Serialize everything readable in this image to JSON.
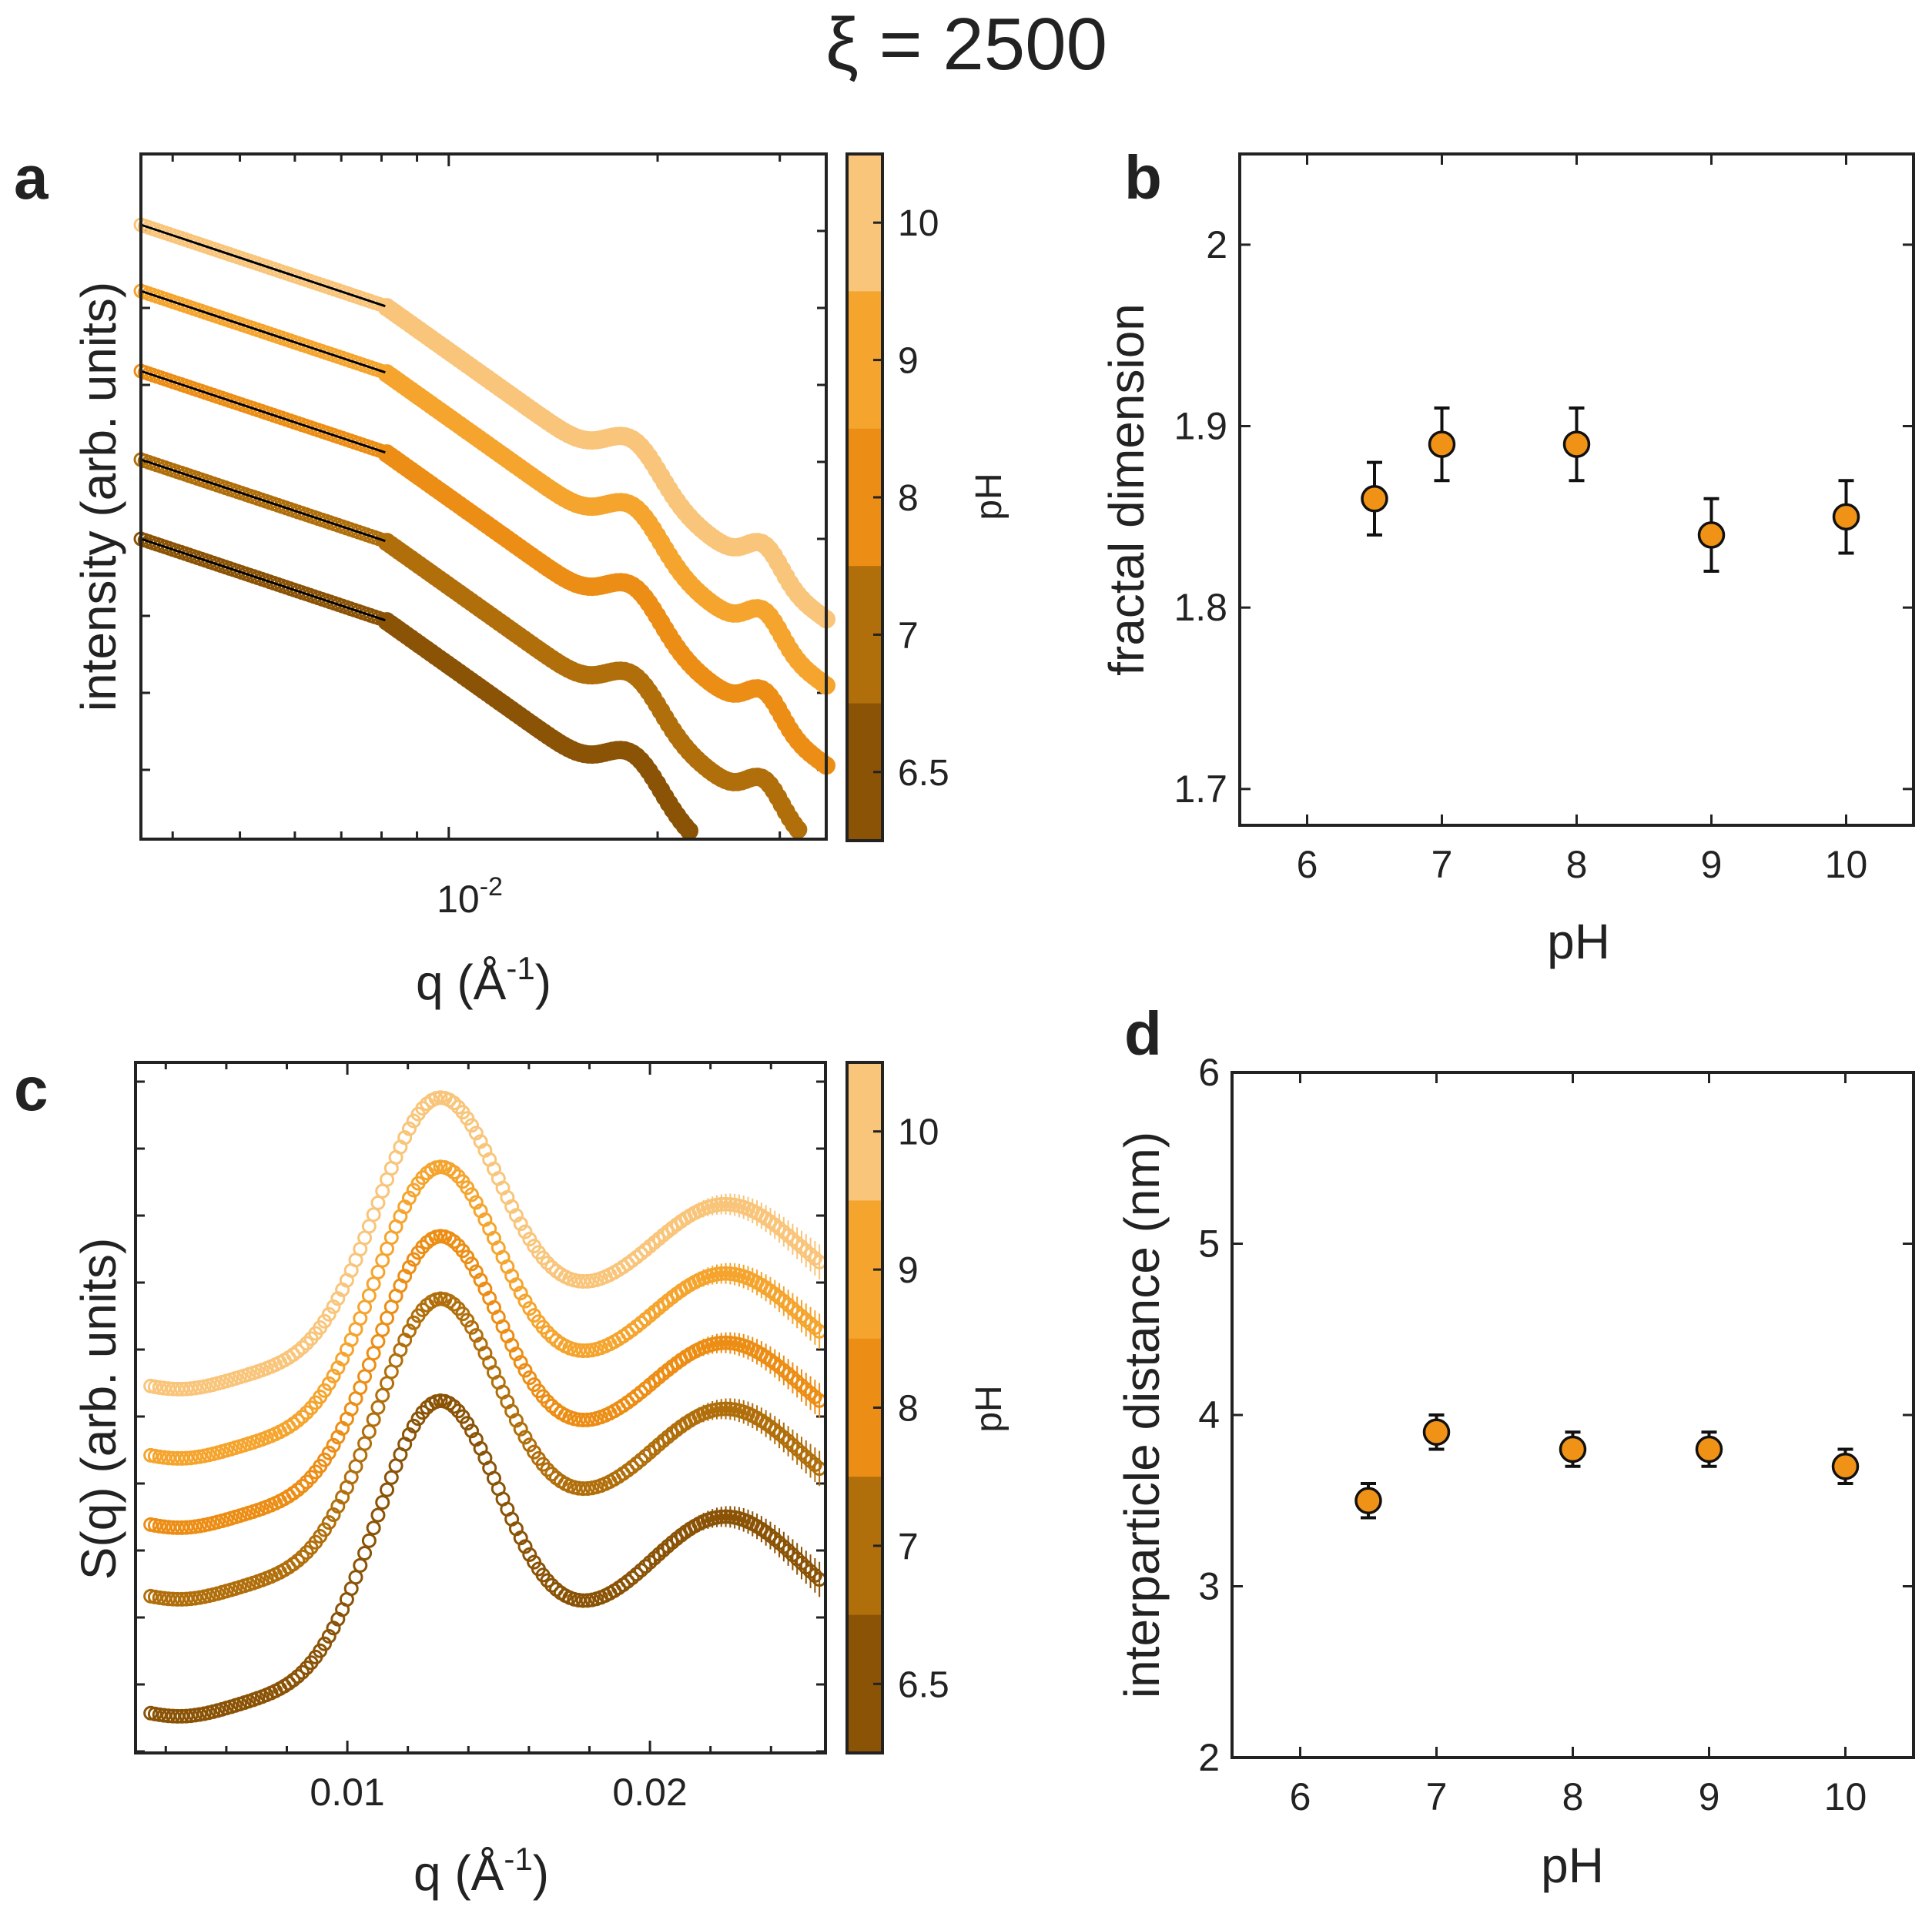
{
  "figure": {
    "title": "ξ = 2500"
  },
  "colors": {
    "ph_6_5": "#8a5306",
    "ph_7": "#b06f0b",
    "ph_8": "#ec8e15",
    "ph_9": "#f5a52e",
    "ph_10": "#f9c57a",
    "marker_fill": "#f09216",
    "frame": "#222222"
  },
  "colorbar": {
    "label": "pH",
    "ticks": [
      "10",
      "9",
      "8",
      "7",
      "6.5"
    ]
  },
  "chart_data": [
    {
      "panel": "a",
      "type": "line",
      "title": "",
      "xlabel": "q (Å",
      "xlabel_sup": "-1",
      "xlabel_end": ")",
      "ylabel": "intensity (arb. units)",
      "xscale": "log",
      "xlim": [
        0.0036,
        0.035
      ],
      "x_tick_base": "10",
      "x_tick_exp": "-2",
      "y_tick_labels": "none",
      "description": "Scattering curves (log-log), vertically offset per pH, with black power-law fit lines at low q",
      "fit_range_q": [
        0.0036,
        0.0081
      ],
      "series": [
        {
          "name": "pH 10",
          "ph": "10",
          "q": [
            0.0036,
            0.0081,
            0.0115,
            0.0155,
            0.019,
            0.0205,
            0.024,
            0.0275,
            0.029,
            0.0325,
            0.035
          ],
          "offset": 4
        },
        {
          "name": "pH 9",
          "ph": "9",
          "q": [
            0.0036,
            0.0081,
            0.0115,
            0.0155,
            0.019,
            0.0205,
            0.024,
            0.0275,
            0.029,
            0.0325,
            0.035
          ],
          "offset": 3
        },
        {
          "name": "pH 8",
          "ph": "8",
          "q": [
            0.0036,
            0.0081,
            0.0115,
            0.0155,
            0.019,
            0.0205,
            0.024,
            0.0275,
            0.029,
            0.0325,
            0.035
          ],
          "offset": 2
        },
        {
          "name": "pH 7",
          "ph": "7",
          "q": [
            0.0036,
            0.0081,
            0.0115,
            0.0155,
            0.019,
            0.0205,
            0.024,
            0.0275,
            0.029,
            0.0325,
            0.035
          ],
          "offset": 1
        },
        {
          "name": "pH 6.5",
          "ph": "6.5",
          "q": [
            0.0036,
            0.0081,
            0.0115,
            0.0155,
            0.019,
            0.0205,
            0.024,
            0.0275,
            0.029,
            0.0325,
            0.035
          ],
          "offset": 0
        }
      ]
    },
    {
      "panel": "b",
      "type": "scatter",
      "title": "",
      "xlabel": "pH",
      "ylabel": "fractal dimension",
      "xlim": [
        5.5,
        10.5
      ],
      "ylim": [
        1.68,
        2.05
      ],
      "xticks": [
        6,
        7,
        8,
        9,
        10
      ],
      "yticks": [
        1.7,
        1.8,
        1.9,
        2.0
      ],
      "ytick_labels": [
        "1.7",
        "1.8",
        "1.9",
        "2"
      ],
      "x": [
        6.5,
        7,
        8,
        9,
        10
      ],
      "y": [
        1.86,
        1.89,
        1.89,
        1.84,
        1.85
      ],
      "yerr": [
        0.02,
        0.02,
        0.02,
        0.02,
        0.02
      ]
    },
    {
      "panel": "c",
      "type": "line",
      "title": "",
      "xlabel": "q (Å",
      "xlabel_sup": "-1",
      "xlabel_end": ")",
      "ylabel": "S(q) (arb. units)",
      "xlim": [
        0.003,
        0.0258
      ],
      "xticks": [
        0.01,
        0.02
      ],
      "xtick_labels": [
        "0.01",
        "0.02"
      ],
      "y_tick_labels": "none",
      "description": "Structure factors, vertically offset per pH; peaks near q = 0.013 and q = 0.022",
      "q_markers": [
        0.0035,
        0.005,
        0.0075,
        0.0105,
        0.013,
        0.0155,
        0.018,
        0.022,
        0.0258
      ],
      "series": [
        {
          "name": "pH 10",
          "ph": "10",
          "offset": 4
        },
        {
          "name": "pH 9",
          "ph": "9",
          "offset": 3
        },
        {
          "name": "pH 8",
          "ph": "8",
          "offset": 2
        },
        {
          "name": "pH 7",
          "ph": "7",
          "offset": 1
        },
        {
          "name": "pH 6.5",
          "ph": "6.5",
          "offset": 0
        }
      ]
    },
    {
      "panel": "d",
      "type": "scatter",
      "title": "",
      "xlabel": "pH",
      "ylabel": "interparticle distance (nm)",
      "xlim": [
        5.5,
        10.5
      ],
      "ylim": [
        2,
        6
      ],
      "xticks": [
        6,
        7,
        8,
        9,
        10
      ],
      "yticks": [
        2,
        3,
        4,
        5,
        6
      ],
      "x": [
        6.5,
        7,
        8,
        9,
        10
      ],
      "y": [
        3.5,
        3.9,
        3.8,
        3.8,
        3.7
      ],
      "yerr": [
        0.1,
        0.1,
        0.1,
        0.1,
        0.1
      ]
    }
  ]
}
